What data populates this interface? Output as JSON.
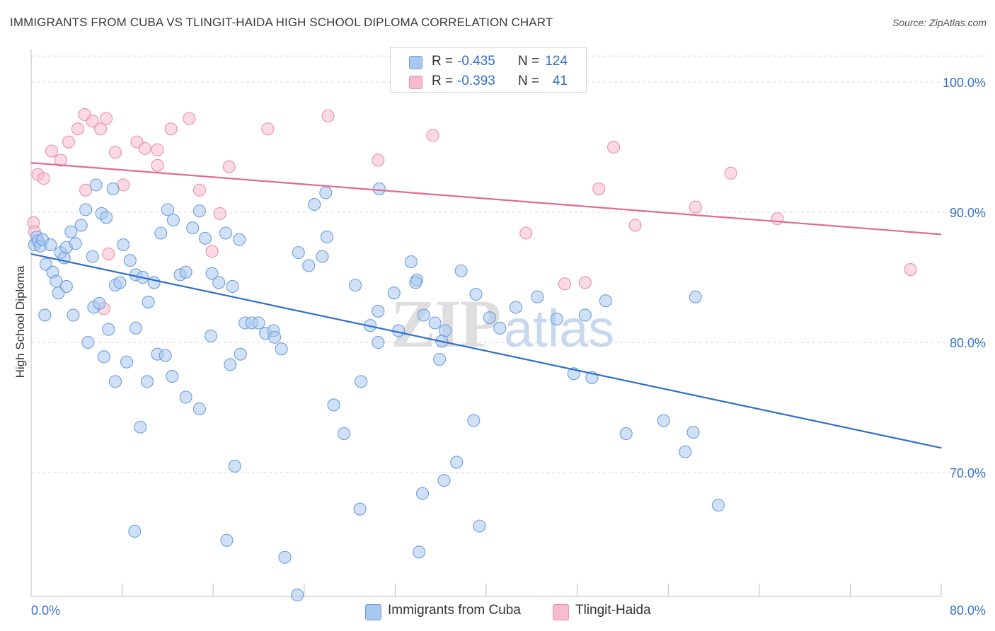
{
  "title": "IMMIGRANTS FROM CUBA VS TLINGIT-HAIDA HIGH SCHOOL DIPLOMA CORRELATION CHART",
  "source": "Source: ZipAtlas.com",
  "watermark": {
    "zip": "ZIP",
    "atlas": "atlas"
  },
  "legend": {
    "rows": [
      {
        "r_label": "R =",
        "r_value": "-0.435",
        "n_label": "N =",
        "n_value": "124"
      },
      {
        "r_label": "R =",
        "r_value": "-0.393",
        "n_label": "N =",
        "n_value": "41"
      }
    ]
  },
  "bottom_legend": {
    "cuba": "Immigrants from Cuba",
    "tlingit": "Tlingit-Haida"
  },
  "colors": {
    "cuba_fill": "#a9c8f0",
    "cuba_stroke": "#6d9fdc",
    "cuba_line": "#2f6fc9",
    "tlingit_fill": "#f7bccd",
    "tlingit_stroke": "#ea90ad",
    "tlingit_line": "#e06a93",
    "axis_text": "#3b74c6",
    "grid": "#d8d8d8"
  },
  "chart_data": {
    "type": "scatter",
    "title": "IMMIGRANTS FROM CUBA VS TLINGIT-HAIDA HIGH SCHOOL DIPLOMA CORRELATION CHART",
    "xlabel": "",
    "ylabel": "High School Diploma",
    "xlim": [
      0,
      80
    ],
    "ylim": [
      60.5,
      102.5
    ],
    "x_tick_labels": [
      "0.0%",
      "80.0%"
    ],
    "y_ticks": [
      70,
      80,
      90,
      100
    ],
    "y_tick_labels": [
      "70.0%",
      "80.0%",
      "90.0%",
      "100.0%"
    ],
    "grid": true,
    "legend_position": "top-center",
    "series": [
      {
        "name": "Immigrants from Cuba",
        "trend": {
          "x": [
            0,
            80
          ],
          "y": [
            86.8,
            71.9
          ]
        },
        "points": [
          [
            0.3,
            87.5
          ],
          [
            0.5,
            88.1
          ],
          [
            0.6,
            87.8
          ],
          [
            0.8,
            87.4
          ],
          [
            1.0,
            87.9
          ],
          [
            1.3,
            86.0
          ],
          [
            1.7,
            87.5
          ],
          [
            1.9,
            85.4
          ],
          [
            2.2,
            84.7
          ],
          [
            2.6,
            86.9
          ],
          [
            2.9,
            86.5
          ],
          [
            3.1,
            87.3
          ],
          [
            3.5,
            88.5
          ],
          [
            3.9,
            87.6
          ],
          [
            4.4,
            89.0
          ],
          [
            4.8,
            90.2
          ],
          [
            5.4,
            86.6
          ],
          [
            5.7,
            92.1
          ],
          [
            6.2,
            89.9
          ],
          [
            6.6,
            89.6
          ],
          [
            7.2,
            91.8
          ],
          [
            2.4,
            83.8
          ],
          [
            3.1,
            84.3
          ],
          [
            3.7,
            82.1
          ],
          [
            1.2,
            82.1
          ],
          [
            5.0,
            80.0
          ],
          [
            5.5,
            82.7
          ],
          [
            6.0,
            83.0
          ],
          [
            6.8,
            81.0
          ],
          [
            7.4,
            84.4
          ],
          [
            7.8,
            84.6
          ],
          [
            8.1,
            87.5
          ],
          [
            8.7,
            86.3
          ],
          [
            9.2,
            85.2
          ],
          [
            9.8,
            85.0
          ],
          [
            10.3,
            83.1
          ],
          [
            10.8,
            84.6
          ],
          [
            11.4,
            88.4
          ],
          [
            12.0,
            90.2
          ],
          [
            12.5,
            89.4
          ],
          [
            13.1,
            85.2
          ],
          [
            13.6,
            85.4
          ],
          [
            14.2,
            88.8
          ],
          [
            14.8,
            90.1
          ],
          [
            15.3,
            88.0
          ],
          [
            15.9,
            85.3
          ],
          [
            16.5,
            84.6
          ],
          [
            17.1,
            88.4
          ],
          [
            17.7,
            84.3
          ],
          [
            18.3,
            87.9
          ],
          [
            18.8,
            81.5
          ],
          [
            19.4,
            81.5
          ],
          [
            20.0,
            81.5
          ],
          [
            20.6,
            80.7
          ],
          [
            21.3,
            80.9
          ],
          [
            22.0,
            79.5
          ],
          [
            6.4,
            78.9
          ],
          [
            7.4,
            77.0
          ],
          [
            8.4,
            78.5
          ],
          [
            9.2,
            81.1
          ],
          [
            10.2,
            77.0
          ],
          [
            11.1,
            79.1
          ],
          [
            11.8,
            79.0
          ],
          [
            12.4,
            77.4
          ],
          [
            13.6,
            75.8
          ],
          [
            14.8,
            74.9
          ],
          [
            15.8,
            80.5
          ],
          [
            17.5,
            78.3
          ],
          [
            18.4,
            79.1
          ],
          [
            21.4,
            80.4
          ],
          [
            26.6,
            75.2
          ],
          [
            27.5,
            73.0
          ],
          [
            28.5,
            84.4
          ],
          [
            30.5,
            82.4
          ],
          [
            31.9,
            83.8
          ],
          [
            32.3,
            80.9
          ],
          [
            33.9,
            84.8
          ],
          [
            34.5,
            82.1
          ],
          [
            35.5,
            81.5
          ],
          [
            36.4,
            80.9
          ],
          [
            37.8,
            85.5
          ],
          [
            39.1,
            83.7
          ],
          [
            40.3,
            81.9
          ],
          [
            41.2,
            81.1
          ],
          [
            42.6,
            82.7
          ],
          [
            44.5,
            83.5
          ],
          [
            46.2,
            81.8
          ],
          [
            47.7,
            77.6
          ],
          [
            48.7,
            82.1
          ],
          [
            52.3,
            73.0
          ],
          [
            55.6,
            74.0
          ],
          [
            57.5,
            71.6
          ],
          [
            58.2,
            73.1
          ],
          [
            60.4,
            67.5
          ],
          [
            58.4,
            83.5
          ],
          [
            50.5,
            83.2
          ],
          [
            49.3,
            77.3
          ],
          [
            26.0,
            88.1
          ],
          [
            24.4,
            85.9
          ],
          [
            23.5,
            86.9
          ],
          [
            24.9,
            90.6
          ],
          [
            25.6,
            86.6
          ],
          [
            25.9,
            91.5
          ],
          [
            30.6,
            91.8
          ],
          [
            29.8,
            81.3
          ],
          [
            30.5,
            80.0
          ],
          [
            33.8,
            84.6
          ],
          [
            35.9,
            78.7
          ],
          [
            33.4,
            86.2
          ],
          [
            29.0,
            77.0
          ],
          [
            36.1,
            80.1
          ],
          [
            38.9,
            74.0
          ],
          [
            36.3,
            69.4
          ],
          [
            37.4,
            70.8
          ],
          [
            34.4,
            68.4
          ],
          [
            28.9,
            67.2
          ],
          [
            34.1,
            63.9
          ],
          [
            39.4,
            65.9
          ],
          [
            9.6,
            73.5
          ],
          [
            9.1,
            65.5
          ],
          [
            17.9,
            70.5
          ],
          [
            17.2,
            64.8
          ],
          [
            22.3,
            63.5
          ],
          [
            23.4,
            60.6
          ]
        ]
      },
      {
        "name": "Tlingit-Haida",
        "trend": {
          "x": [
            0,
            80
          ],
          "y": [
            93.8,
            88.3
          ]
        },
        "points": [
          [
            0.2,
            89.2
          ],
          [
            0.3,
            88.5
          ],
          [
            0.6,
            92.9
          ],
          [
            1.1,
            92.6
          ],
          [
            1.8,
            94.7
          ],
          [
            2.6,
            94.0
          ],
          [
            3.3,
            95.4
          ],
          [
            4.1,
            96.4
          ],
          [
            4.7,
            97.5
          ],
          [
            5.4,
            97.0
          ],
          [
            6.1,
            96.4
          ],
          [
            6.6,
            97.2
          ],
          [
            7.4,
            94.6
          ],
          [
            8.1,
            92.1
          ],
          [
            9.3,
            95.4
          ],
          [
            10.0,
            94.9
          ],
          [
            11.1,
            93.6
          ],
          [
            12.3,
            96.4
          ],
          [
            13.9,
            97.2
          ],
          [
            14.8,
            91.7
          ],
          [
            17.4,
            93.5
          ],
          [
            20.8,
            96.4
          ],
          [
            26.1,
            97.4
          ],
          [
            30.5,
            94.0
          ],
          [
            35.3,
            95.9
          ],
          [
            43.5,
            88.4
          ],
          [
            46.9,
            84.5
          ],
          [
            48.7,
            84.6
          ],
          [
            49.9,
            91.8
          ],
          [
            51.2,
            95.0
          ],
          [
            53.1,
            89.0
          ],
          [
            58.4,
            90.4
          ],
          [
            61.5,
            93.0
          ],
          [
            65.6,
            89.5
          ],
          [
            6.8,
            86.8
          ],
          [
            4.8,
            91.7
          ],
          [
            6.4,
            82.6
          ],
          [
            11.1,
            94.8
          ],
          [
            15.9,
            87.0
          ],
          [
            16.6,
            89.9
          ],
          [
            77.3,
            85.6
          ]
        ]
      }
    ]
  }
}
